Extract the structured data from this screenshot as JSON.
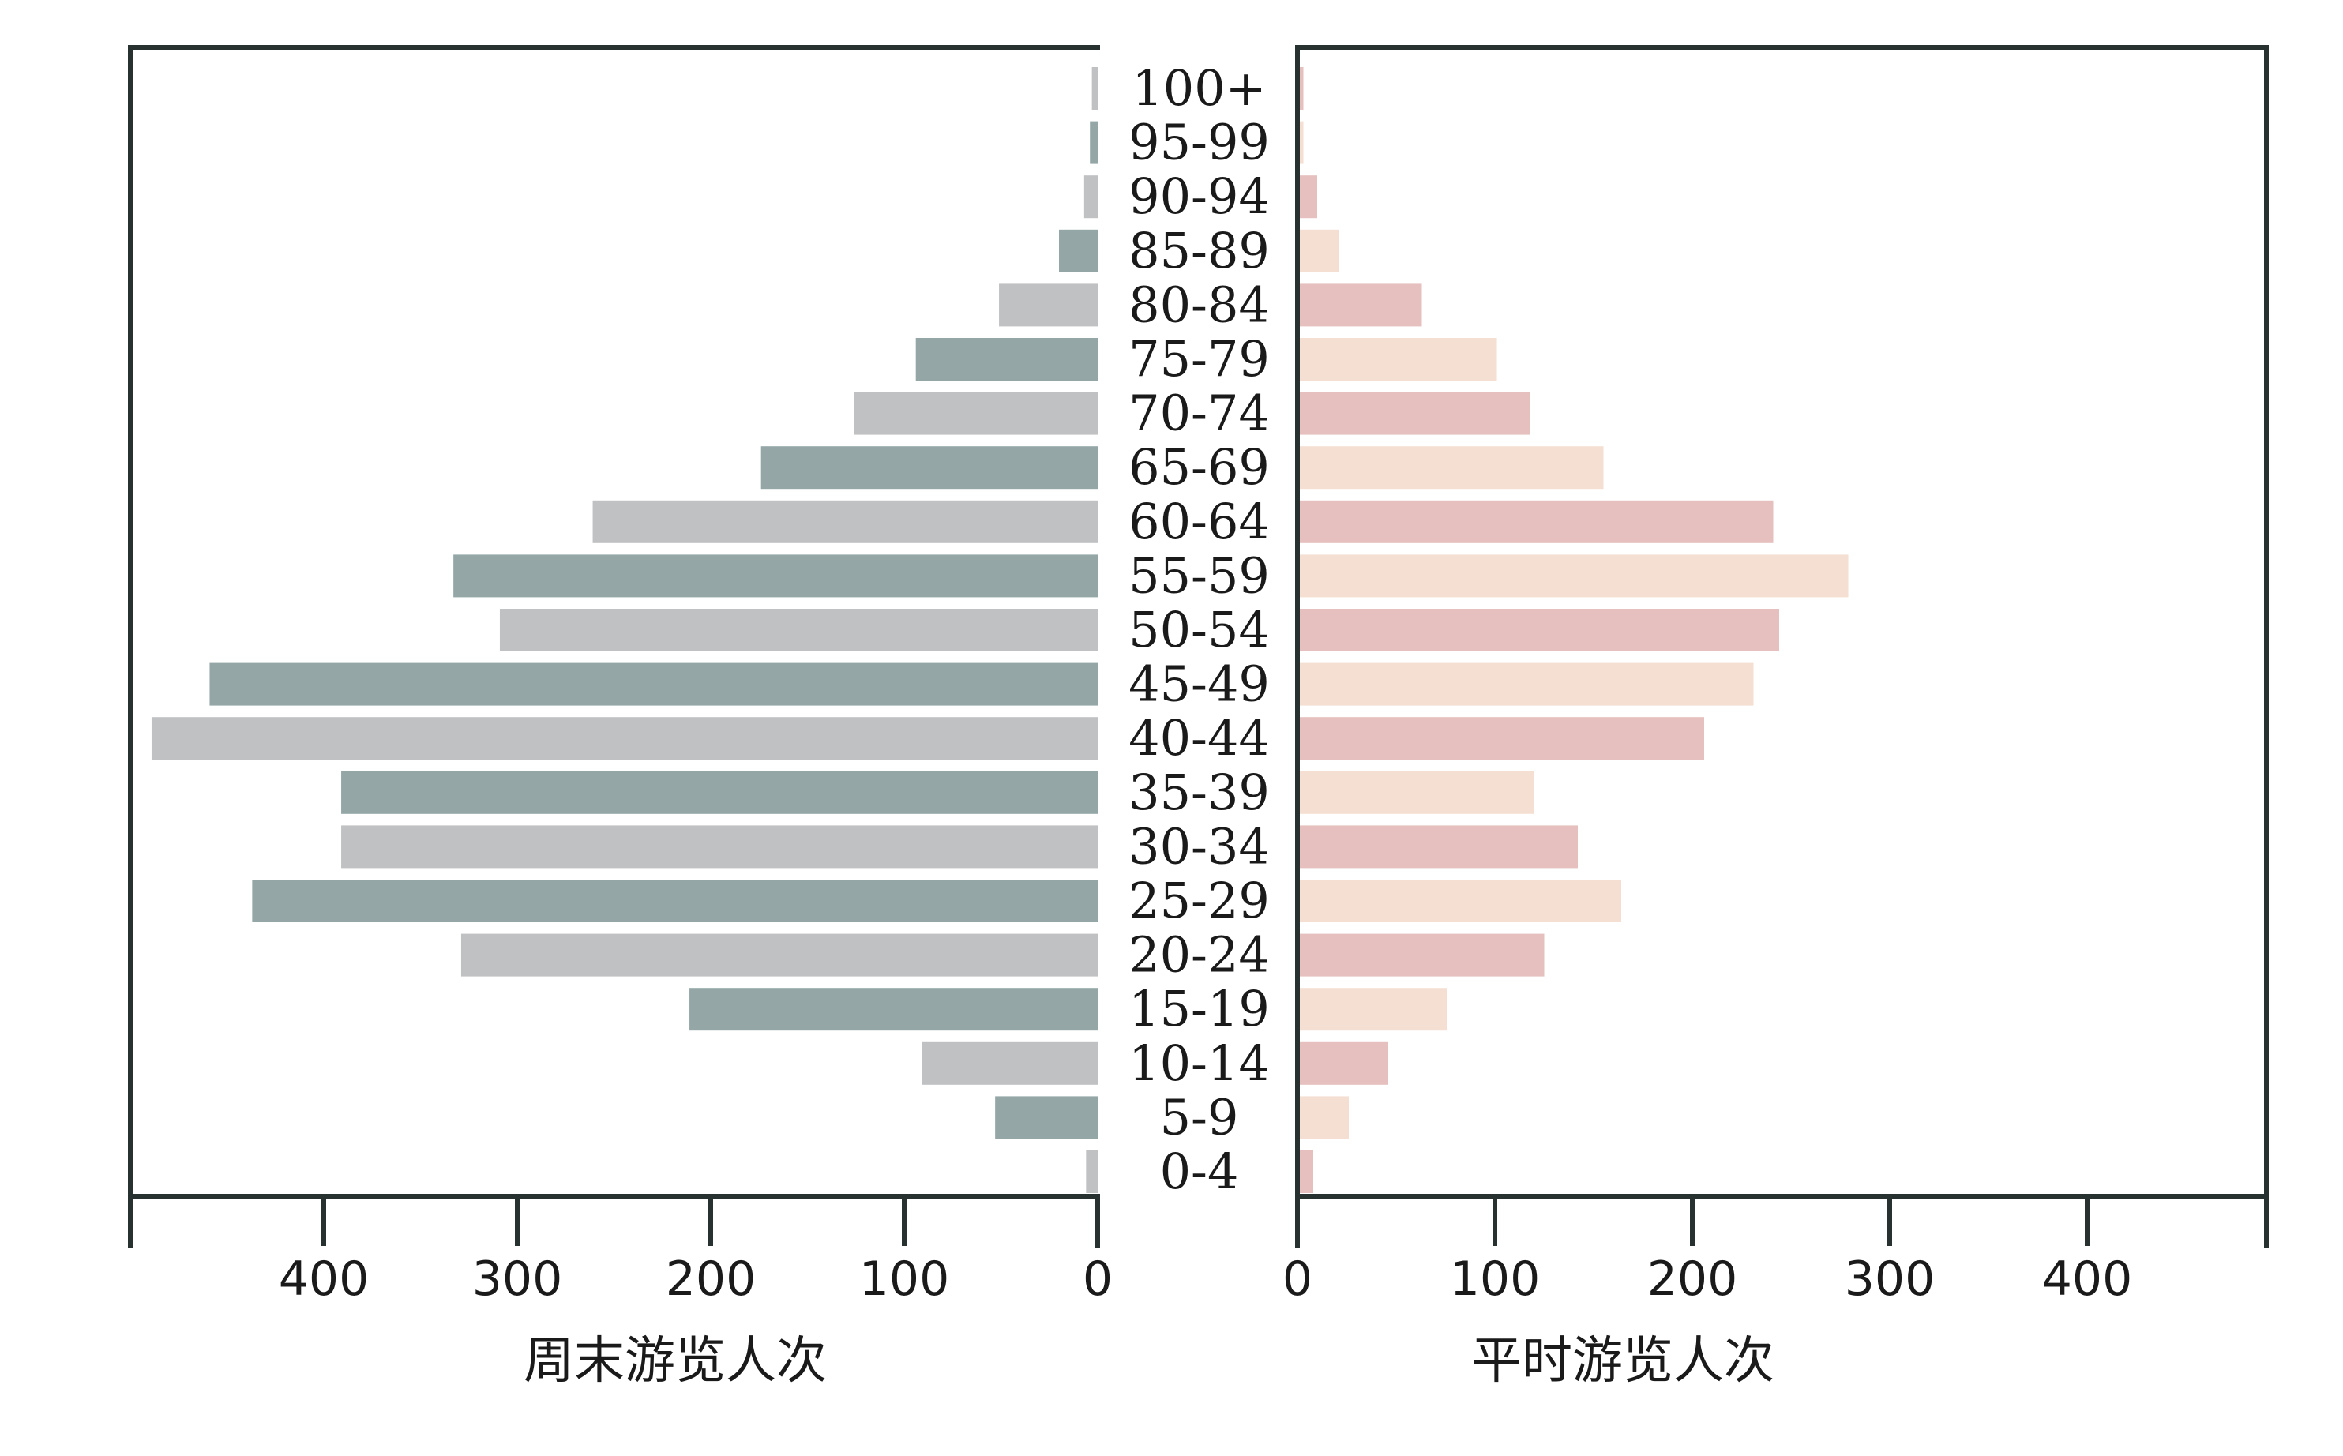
{
  "chart_data": {
    "type": "bar",
    "subtype": "population-pyramid",
    "categories": [
      "100+",
      "95-99",
      "90-94",
      "85-89",
      "80-84",
      "75-79",
      "70-74",
      "65-69",
      "60-64",
      "55-59",
      "50-54",
      "45-49",
      "40-44",
      "35-39",
      "30-34",
      "25-29",
      "20-24",
      "15-19",
      "10-14",
      "5-9",
      "0-4"
    ],
    "series": [
      {
        "name": "周末游览人次",
        "side": "left",
        "colors": [
          "#c0c1c2",
          "#94a7a6"
        ],
        "values": [
          3,
          4,
          7,
          20,
          51,
          94,
          126,
          174,
          261,
          333,
          309,
          459,
          489,
          391,
          391,
          437,
          329,
          211,
          91,
          53,
          6
        ]
      },
      {
        "name": "平时游览人次",
        "side": "right",
        "colors": [
          "#e5c0be",
          "#f5dfd2"
        ],
        "values": [
          3,
          3,
          10,
          21,
          63,
          101,
          118,
          155,
          241,
          279,
          244,
          231,
          206,
          120,
          142,
          164,
          125,
          76,
          46,
          26,
          8
        ]
      }
    ],
    "left_axis": {
      "ticks": [
        400,
        300,
        200,
        100,
        0
      ],
      "xlabel": "周末游览人次",
      "xlim": [
        500,
        0
      ]
    },
    "right_axis": {
      "ticks": [
        0,
        100,
        200,
        300,
        400
      ],
      "xlabel": "平时游览人次",
      "xlim": [
        0,
        500
      ]
    },
    "grid": false,
    "legend": "none"
  }
}
